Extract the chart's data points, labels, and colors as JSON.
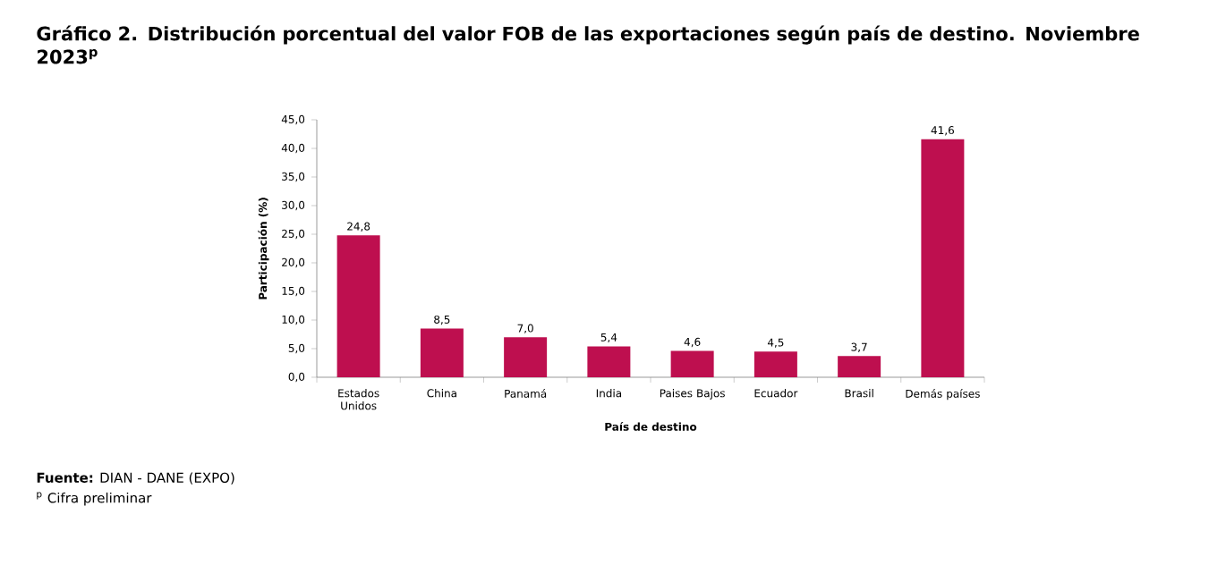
{
  "chart_data": {
    "type": "bar",
    "title": "Gráfico 2. Distribución porcentual del valor FOB de las exportaciones según país de destino. Noviembre 2023$^{p}$",
    "xlabel": "País de destino",
    "ylabel": "Participación (%)",
    "categories": [
      "Estados Unidos",
      "China",
      "Panamá",
      "India",
      "Paises Bajos",
      "Ecuador",
      "Brasil",
      "Demás países"
    ],
    "values": [
      24.8,
      8.5,
      7.0,
      5.4,
      4.6,
      4.5,
      3.7,
      41.6
    ],
    "value_labels": [
      "24,8",
      "8,5",
      "7,0",
      "5,4",
      "4,6",
      "4,5",
      "3,7",
      "41,6"
    ],
    "color": "#be0f4f",
    "ylim": [
      0,
      45
    ],
    "yticks": [
      {
        "value": 0,
        "label": "0,0"
      },
      {
        "value": 5,
        "label": "5,0"
      },
      {
        "value": 10,
        "label": "10,0"
      },
      {
        "value": 15,
        "label": "15,0"
      },
      {
        "value": 20,
        "label": "20,0"
      },
      {
        "value": 25,
        "label": "25,0"
      },
      {
        "value": 30,
        "label": "30,0"
      },
      {
        "value": 35,
        "label": "35,0"
      },
      {
        "value": 40,
        "label": "40,0"
      },
      {
        "value": 45,
        "label": "45,0"
      }
    ],
    "grid": false,
    "annotations": [
      "**Fuente:** DIAN - DANE (EXPO)",
      "$^{p}$ Cifra preliminar"
    ]
  }
}
